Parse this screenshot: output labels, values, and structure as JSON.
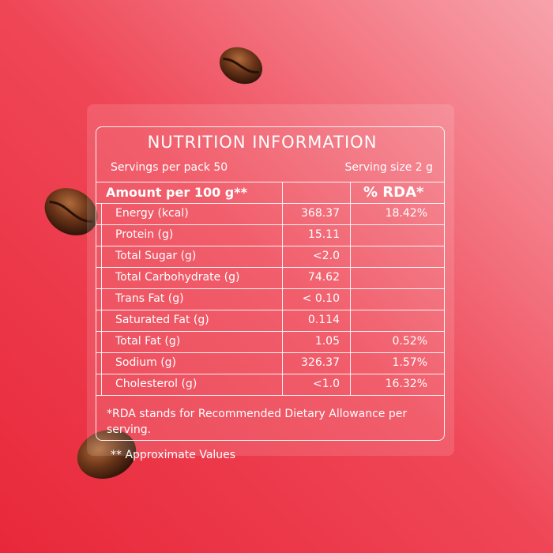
{
  "title": "NUTRITION INFORMATION",
  "servings": "Servings per pack 50",
  "serving_size": "Serving size 2 g",
  "table": {
    "header": [
      "Amount per 100 g**",
      "% RDA*"
    ],
    "rows": [
      [
        "Energy (kcal)",
        "368.37",
        "18.42%"
      ],
      [
        "Protein (g)",
        "15.11"
      ],
      [
        "Total Sugar (g)",
        "<2.0"
      ],
      [
        "Total Carbohydrate (g)",
        "74.62"
      ],
      [
        "Trans Fat (g)",
        "< 0.10"
      ],
      [
        "Saturated Fat (g)",
        "0.114"
      ],
      [
        "Total Fat (g)",
        "1.05",
        "0.52%"
      ],
      [
        "Sodium (g)",
        "326.37",
        "1.57%"
      ],
      [
        "Cholesterol (g)",
        "<1.0",
        "16.32%"
      ]
    ]
  },
  "footnote": "*RDA stands for Recommended Dietary Allowance per serving.",
  "note": "** Approximate Values"
}
